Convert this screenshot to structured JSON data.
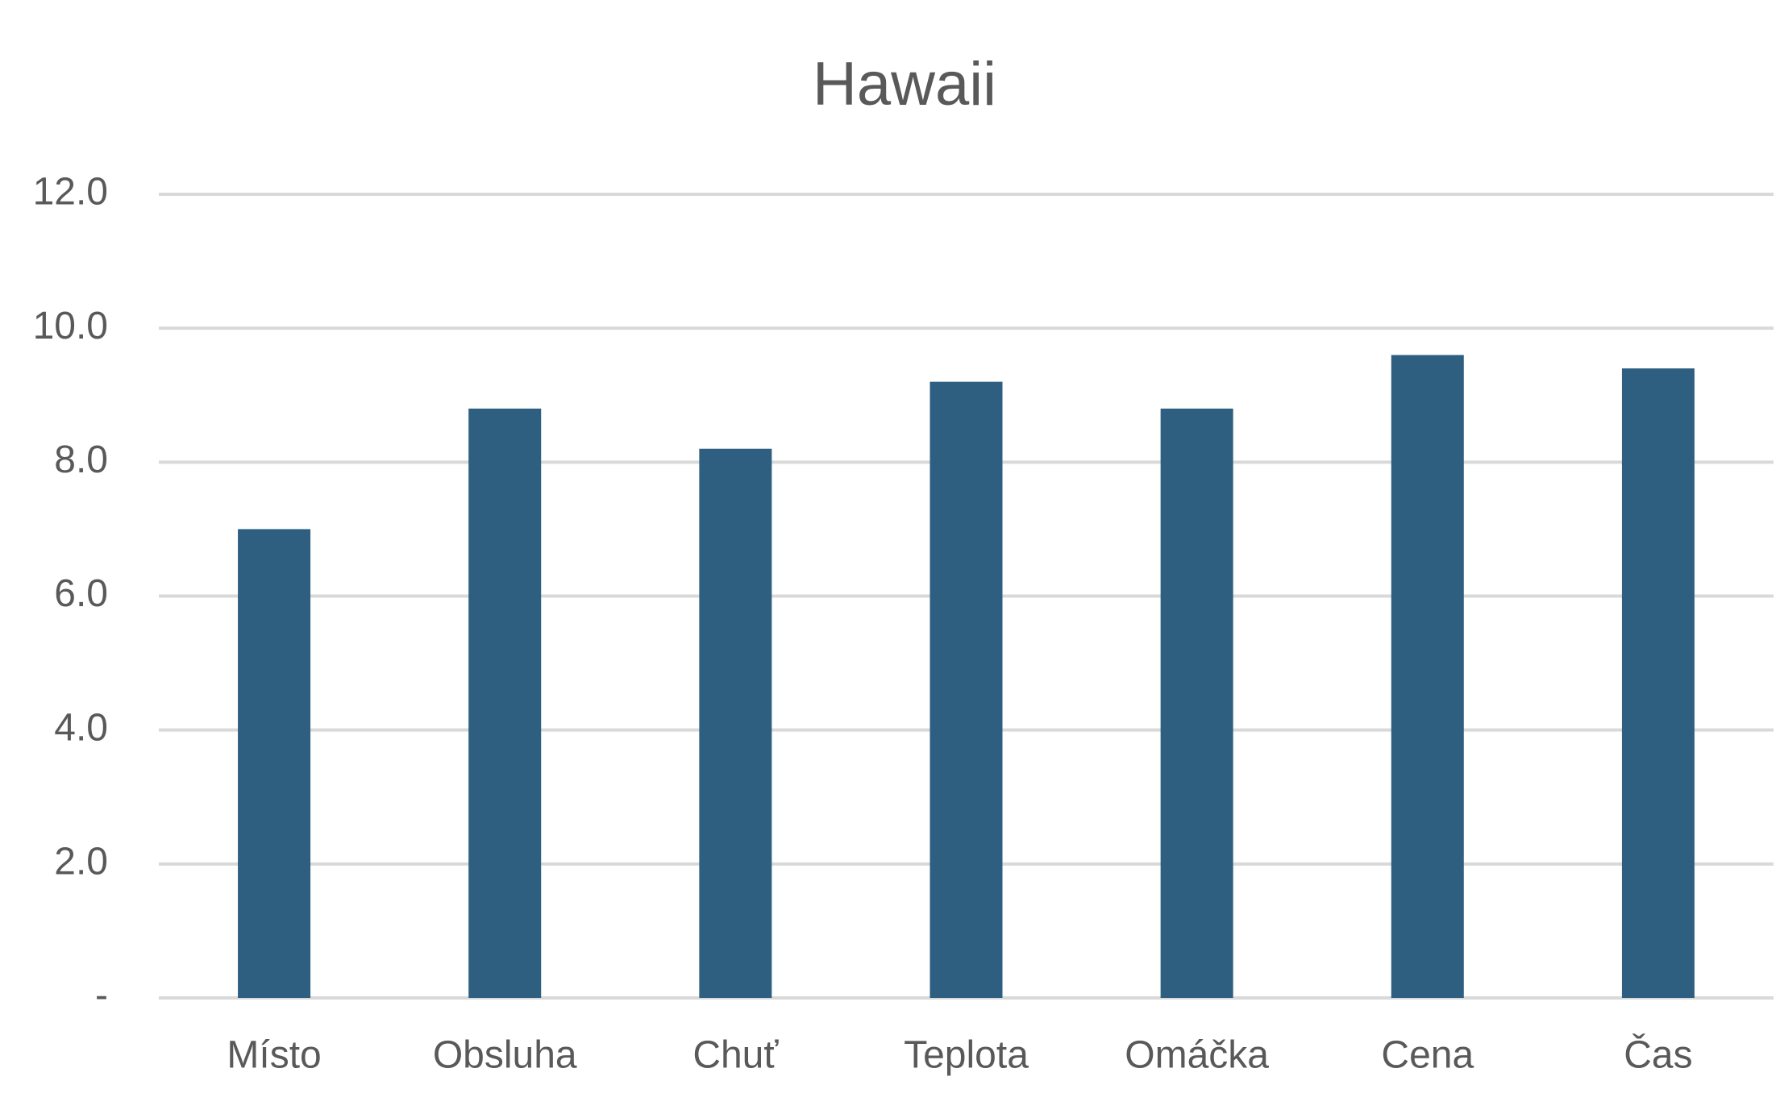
{
  "chart_data": {
    "type": "bar",
    "title": "Hawaii",
    "categories": [
      "Místo",
      "Obsluha",
      "Chuť",
      "Teplota",
      "Omáčka",
      "Cena",
      "Čas"
    ],
    "values": [
      7.0,
      8.8,
      8.2,
      9.2,
      8.8,
      9.6,
      9.4
    ],
    "color": "#2e5f80",
    "ylim": [
      0,
      12
    ],
    "yticks": [
      {
        "value": 0,
        "label": "-"
      },
      {
        "value": 2,
        "label": "2.0"
      },
      {
        "value": 4,
        "label": "4.0"
      },
      {
        "value": 6,
        "label": "6.0"
      },
      {
        "value": 8,
        "label": "8.0"
      },
      {
        "value": 10,
        "label": "10.0"
      },
      {
        "value": 12,
        "label": "12.0"
      }
    ],
    "grid": true
  }
}
